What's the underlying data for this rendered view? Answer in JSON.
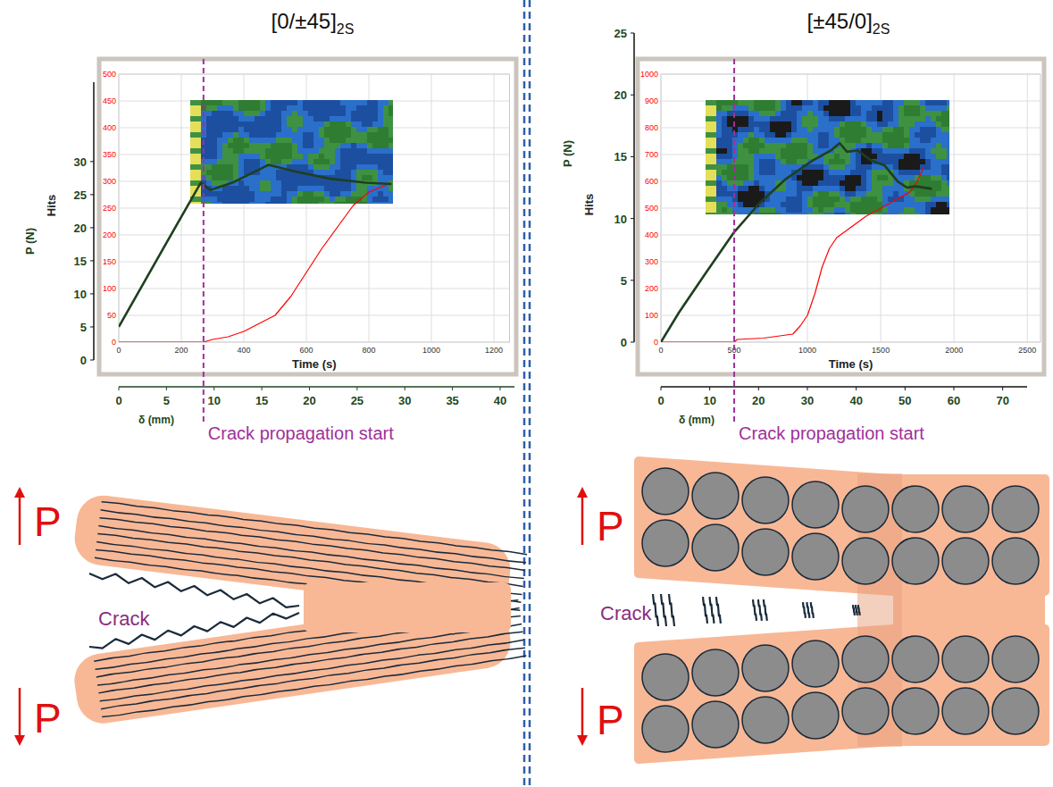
{
  "chart_data": [
    {
      "type": "line",
      "title": "[0/±45]2S",
      "x_label": "Time (s)",
      "y_label": "Hits",
      "x2_label": "δ (mm)",
      "y2_label": "P (N)",
      "xlim": [
        0,
        1250
      ],
      "xticks": [
        0,
        200,
        400,
        600,
        800,
        1000,
        1200
      ],
      "ylim": [
        0,
        500
      ],
      "yticks": [
        0,
        50,
        100,
        150,
        200,
        250,
        300,
        350,
        400,
        450,
        500
      ],
      "x2lim": [
        0,
        41.5
      ],
      "x2ticks": [
        0,
        5,
        10,
        15,
        20,
        25,
        30,
        35,
        40
      ],
      "y2lim": [
        0,
        42
      ],
      "y2ticks": [
        0,
        5,
        10,
        15,
        20,
        25,
        30
      ],
      "grid": true,
      "series": [
        {
          "name": "Hits",
          "color": "#ff0000",
          "x": [
            0,
            270,
            300,
            350,
            400,
            450,
            500,
            550,
            600,
            650,
            700,
            750,
            800,
            871
          ],
          "values": [
            0,
            0,
            5,
            10,
            20,
            35,
            50,
            85,
            130,
            175,
            215,
            255,
            280,
            297
          ]
        },
        {
          "name": "P (N)",
          "color": "#1f3f1f",
          "axis": "y2",
          "x": [
            0,
            4.4,
            8.6,
            9.6,
            11.9,
            15.7,
            18.5,
            22.2,
            25.9,
            28.6
          ],
          "values": [
            5.0,
            16.2,
            26.8,
            25.7,
            26.8,
            29.5,
            28.5,
            27.4,
            26.8,
            26.6
          ]
        }
      ],
      "annotation": {
        "text": "Crack propagation start",
        "x": 271
      }
    },
    {
      "type": "line",
      "title": "[±45/0]2S",
      "x_label": "Time (s)",
      "y_label": "Hits",
      "x2_label": "δ (mm)",
      "y2_label": "P (N)",
      "xlim": [
        0,
        2590
      ],
      "xticks": [
        0,
        500,
        1000,
        1500,
        2000,
        2500
      ],
      "ylim": [
        0,
        1000
      ],
      "yticks": [
        0,
        100,
        200,
        300,
        400,
        500,
        600,
        700,
        800,
        900,
        1000
      ],
      "x2lim": [
        0,
        75
      ],
      "x2ticks": [
        0,
        10,
        20,
        30,
        40,
        50,
        60,
        70
      ],
      "y2lim": [
        0,
        25
      ],
      "y2ticks": [
        0,
        5,
        10,
        15,
        20,
        25
      ],
      "grid": true,
      "series": [
        {
          "name": "Hits",
          "color": "#ff0000",
          "x": [
            0,
            500,
            520,
            700,
            900,
            950,
            1000,
            1050,
            1100,
            1150,
            1200,
            1300,
            1400,
            1500,
            1600,
            1700,
            1750,
            1790
          ],
          "values": [
            0,
            0,
            10,
            15,
            30,
            60,
            100,
            180,
            280,
            350,
            390,
            430,
            470,
            500,
            530,
            560,
            600,
            650
          ]
        },
        {
          "name": "P (N)",
          "color": "#1f3f1f",
          "axis": "y2",
          "x": [
            0,
            3.7,
            9.2,
            15.0,
            20.1,
            25.6,
            31.1,
            34.8,
            36.6,
            38.1,
            40.3,
            43.0,
            45.8,
            48.5,
            50.4,
            52.2,
            55.5
          ],
          "values": [
            0,
            2.4,
            5.6,
            8.9,
            11.2,
            13.2,
            14.7,
            15.5,
            16.1,
            15.4,
            15.5,
            14.7,
            14.3,
            13.0,
            12.5,
            12.6,
            12.4
          ]
        }
      ],
      "annotation": {
        "text": "Crack propagation start",
        "x": 500
      }
    }
  ],
  "diagrams": [
    {
      "load_labels": [
        "P",
        "P"
      ],
      "crack_label": "Crack"
    },
    {
      "load_labels": [
        "P",
        "P"
      ],
      "crack_label": "Crack"
    }
  ]
}
